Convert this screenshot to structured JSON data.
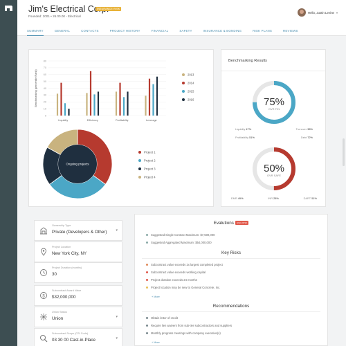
{
  "header": {
    "company": "Jim's Electrical Corp.",
    "badge": "INSURANCE RISK",
    "subtitle": "Founded: 2001  •  26.00.00 - Electrical",
    "user": "Hello, Justin Levine"
  },
  "tabs": [
    "SUMMARY",
    "GENERAL",
    "CONTACTS",
    "PROJECT HISTORY",
    "FINANCIAL",
    "SAFETY",
    "INSURANCE & BONDING",
    "RISK PLANS",
    "REVIEWS"
  ],
  "colors": {
    "y2013": "#c9b37f",
    "y2014": "#b63a2f",
    "y2015": "#4ba7c6",
    "y2016": "#1f2f3f",
    "accent": "#4d8fb0",
    "alert": "#e0584a"
  },
  "chart_data": [
    {
      "type": "bar",
      "ylabel": "Benchmarking (percentile Rank)",
      "ylim": [
        0,
        80
      ],
      "yticks": [
        0,
        10,
        20,
        30,
        40,
        50,
        60,
        70,
        80
      ],
      "categories": [
        "Liquidity",
        "Efficiency",
        "Profitability",
        "Leverage"
      ],
      "series": [
        {
          "name": "2013",
          "values": [
            32,
            33,
            35,
            29
          ]
        },
        {
          "name": "2014",
          "values": [
            48,
            65,
            48,
            54
          ]
        },
        {
          "name": "2015",
          "values": [
            18,
            31,
            27,
            46
          ]
        },
        {
          "name": "2016",
          "values": [
            10,
            35,
            35,
            57
          ]
        }
      ]
    },
    {
      "type": "pie",
      "title": "Ongoing projects",
      "labels": [
        "Project 1",
        "Project 2",
        "Project 3",
        "Project 4"
      ],
      "values": [
        35,
        30,
        18,
        17
      ]
    }
  ],
  "benchmark": {
    "title": "Benchmarking Results",
    "gauge1": {
      "value": "75%",
      "label": "OVR FIN",
      "fraction": 0.75,
      "stats": [
        {
          "label": "Liquidity",
          "value": "47%"
        },
        {
          "label": "Turnover",
          "value": "38%"
        },
        {
          "label": "Profitability",
          "value": "51%"
        },
        {
          "label": "Debt",
          "value": "72%"
        }
      ]
    },
    "gauge2": {
      "value": "50%",
      "label": "OVR SAFE",
      "fraction": 0.5,
      "stats": [
        {
          "label": "EMR",
          "value": "49%"
        },
        {
          "label": "INR",
          "value": "28%"
        },
        {
          "label": "DART",
          "value": "51%"
        }
      ]
    }
  },
  "fields": [
    {
      "label": "Ownership Type",
      "value": "Private (Developers & Other)",
      "icon": "building-icon",
      "dropdown": true
    },
    {
      "label": "Project Location",
      "value": "New York City, NY",
      "icon": "location-pin-icon",
      "dropdown": false
    },
    {
      "label": "Project Duration (months)",
      "value": "30",
      "icon": "clock-icon",
      "dropdown": false
    },
    {
      "label": "Subcontract Award Value",
      "value": "$32,000,000",
      "icon": "dollar-icon",
      "dropdown": false
    },
    {
      "label": "Union Status",
      "value": "Union",
      "icon": "union-icon",
      "dropdown": true
    },
    {
      "label": "Subcontract Scope (CSI Code)",
      "value": "03 30 00 Cast-in-Place",
      "icon": "search-icon",
      "dropdown": true
    }
  ],
  "evaluations": {
    "title": "Evalutions",
    "pill": "HIGH RISK",
    "items": [
      "Suggested Single Contract Maximum: $7,500,000",
      "Suggested Aggregated Maximum: $54,000,000"
    ],
    "risks_title": "Key Risks",
    "risks": [
      "Subcontract value exceeds 2x largest completed project",
      "Subcontract value exceeds working capital",
      "Project duration exceeds 24 months",
      "Project location may be new to General Concrete, Inc."
    ],
    "risk_colors": [
      "#e08a5a",
      "#e0584a",
      "#e0584a",
      "#e8c15a"
    ],
    "more1": "+ More",
    "rec_title": "Recommendations",
    "recs": [
      "Obtain letter of credit",
      "Require lien waivers from sub-tier subcontractors and suppliers",
      "Monthly progress meetings with company executive(s)"
    ],
    "more2": "+ More"
  }
}
